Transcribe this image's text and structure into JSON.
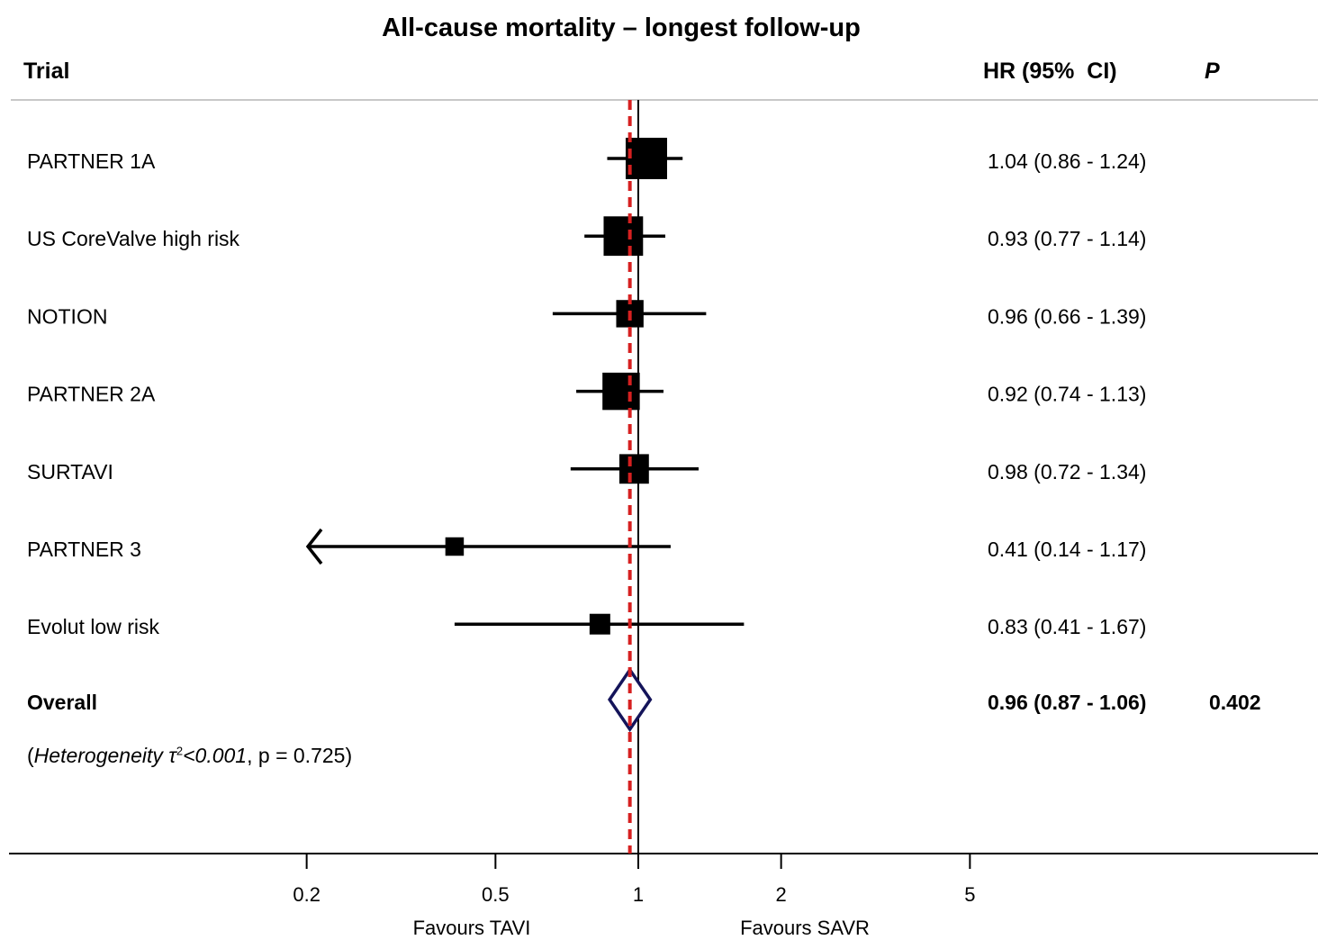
{
  "chart_data": {
    "type": "forest",
    "title": "All-cause mortality – longest follow-up",
    "headers": {
      "trial": "Trial",
      "hr": "HR (95%  CI)",
      "p": "P"
    },
    "scale": "log",
    "xlim": [
      0.1,
      10
    ],
    "reference_line": 1,
    "pooled_line": 0.96,
    "ticks": [
      {
        "value": 0.2,
        "label": "0.2"
      },
      {
        "value": 0.5,
        "label": "0.5"
      },
      {
        "value": 1,
        "label": "1"
      },
      {
        "value": 2,
        "label": "2"
      },
      {
        "value": 5,
        "label": "5"
      }
    ],
    "favours_left": "Favours TAVI",
    "favours_right": "Favours SAVR",
    "rows": [
      {
        "trial": "PARTNER 1A",
        "hr": 1.04,
        "lo": 0.86,
        "hi": 1.24,
        "text": "1.04 (0.86 - 1.24)",
        "weight": 2.4
      },
      {
        "trial": "US CoreValve high risk",
        "hr": 0.93,
        "lo": 0.77,
        "hi": 1.14,
        "text": "0.93 (0.77 - 1.14)",
        "weight": 2.1
      },
      {
        "trial": "NOTION",
        "hr": 0.96,
        "lo": 0.66,
        "hi": 1.39,
        "text": "0.96 (0.66 - 1.39)",
        "weight": 0.7
      },
      {
        "trial": "PARTNER 2A",
        "hr": 0.92,
        "lo": 0.74,
        "hi": 1.13,
        "text": "0.92 (0.74 - 1.13)",
        "weight": 1.8
      },
      {
        "trial": "SURTAVI",
        "hr": 0.98,
        "lo": 0.72,
        "hi": 1.34,
        "text": "0.98 (0.72 - 1.34)",
        "weight": 0.9
      },
      {
        "trial": "PARTNER 3",
        "hr": 0.41,
        "lo": 0.14,
        "hi": 1.17,
        "text": "0.41 (0.14 - 1.17)",
        "weight": 0.15
      },
      {
        "trial": "Evolut low risk",
        "hr": 0.83,
        "lo": 0.41,
        "hi": 1.67,
        "text": "0.83 (0.41 - 1.67)",
        "weight": 0.25
      }
    ],
    "overall": {
      "label": "Overall",
      "hr": 0.96,
      "lo": 0.87,
      "hi": 1.06,
      "text": "0.96 (0.87 - 1.06)",
      "p": "0.402"
    },
    "heterogeneity": {
      "open": "(",
      "label": "Heterogeneity τ",
      "sup": "2",
      "value": "<0.001",
      "rest": ", p = 0.725)"
    },
    "colors": {
      "pooled_line": "#d62020",
      "diamond": "#14145a",
      "marks": "#000000"
    }
  }
}
